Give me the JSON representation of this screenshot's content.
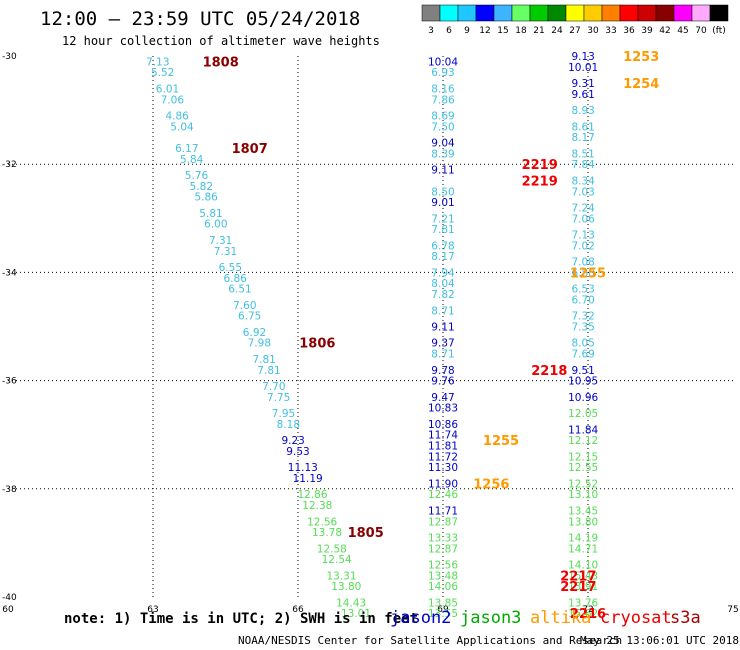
{
  "header": {
    "title": "12:00 – 23:59 UTC 05/24/2018",
    "subtitle": "12 hour collection of altimeter wave heights"
  },
  "scale": {
    "labels": [
      "3",
      "6",
      "9",
      "12",
      "15",
      "18",
      "21",
      "24",
      "27",
      "30",
      "33",
      "36",
      "39",
      "42",
      "45",
      "70",
      "(ft)"
    ],
    "colors": [
      "#808080",
      "#00ffff",
      "#1ec8ff",
      "#0000ff",
      "#3cb4ff",
      "#66ff66",
      "#00cc00",
      "#008800",
      "#ffff00",
      "#ffcc00",
      "#ff8000",
      "#ff0000",
      "#cc0000",
      "#880000",
      "#ff00ff",
      "#ffaaff",
      "#000000"
    ]
  },
  "footer": {
    "note": "note: 1) Time is in UTC; 2) SWH is in feet",
    "legend": [
      {
        "name": "jason2",
        "color": "#0000cc"
      },
      {
        "name": "jason3",
        "color": "#00aa00"
      },
      {
        "name": "altika",
        "color": "#ff9900"
      },
      {
        "name": "cryosat",
        "color": "#ee0000"
      },
      {
        "name": "s3a",
        "color": "#aa0000"
      }
    ],
    "credit": "NOAA/NESDIS Center for Satellite Applications and Research",
    "timestamp": "May 25 13:06:01 UTC 2018"
  },
  "chart_data": {
    "type": "scatter",
    "title": "12 hour collection of altimeter wave heights",
    "xlim": [
      60,
      75
    ],
    "ylim": [
      -40,
      -30
    ],
    "xticks": [
      "60",
      "63",
      "66",
      "69",
      "72",
      "75"
    ],
    "yticks": [
      "-30",
      "-32",
      "-34",
      "-36",
      "-38",
      "-40"
    ],
    "grid": true,
    "units": "ft",
    "points": [
      {
        "x": 63.1,
        "y": -30.1,
        "t": "7.13",
        "c": "#40c0e0"
      },
      {
        "x": 63.2,
        "y": -30.3,
        "t": "5.52",
        "c": "#40c0e0"
      },
      {
        "x": 63.3,
        "y": -30.6,
        "t": "6.01",
        "c": "#40c0e0"
      },
      {
        "x": 63.4,
        "y": -30.8,
        "t": "7.06",
        "c": "#40c0e0"
      },
      {
        "x": 63.5,
        "y": -31.1,
        "t": "4.86",
        "c": "#40c0e0"
      },
      {
        "x": 63.6,
        "y": -31.3,
        "t": "5.04",
        "c": "#40c0e0"
      },
      {
        "x": 63.7,
        "y": -31.7,
        "t": "6.17",
        "c": "#40c0e0"
      },
      {
        "x": 63.8,
        "y": -31.9,
        "t": "5.84",
        "c": "#40c0e0"
      },
      {
        "x": 63.9,
        "y": -32.2,
        "t": "5.76",
        "c": "#40c0e0"
      },
      {
        "x": 64.0,
        "y": -32.4,
        "t": "5.82",
        "c": "#40c0e0"
      },
      {
        "x": 64.1,
        "y": -32.6,
        "t": "5.86",
        "c": "#40c0e0"
      },
      {
        "x": 64.2,
        "y": -32.9,
        "t": "5.81",
        "c": "#40c0e0"
      },
      {
        "x": 64.3,
        "y": -33.1,
        "t": "6.00",
        "c": "#40c0e0"
      },
      {
        "x": 64.4,
        "y": -33.4,
        "t": "7.31",
        "c": "#40c0e0"
      },
      {
        "x": 64.5,
        "y": -33.6,
        "t": "7.31",
        "c": "#40c0e0"
      },
      {
        "x": 64.6,
        "y": -33.9,
        "t": "6.55",
        "c": "#40c0e0"
      },
      {
        "x": 64.7,
        "y": -34.1,
        "t": "6.86",
        "c": "#40c0e0"
      },
      {
        "x": 64.8,
        "y": -34.3,
        "t": "6.51",
        "c": "#40c0e0"
      },
      {
        "x": 64.9,
        "y": -34.6,
        "t": "7.60",
        "c": "#40c0e0"
      },
      {
        "x": 65.0,
        "y": -34.8,
        "t": "6.75",
        "c": "#40c0e0"
      },
      {
        "x": 65.1,
        "y": -35.1,
        "t": "6.92",
        "c": "#40c0e0"
      },
      {
        "x": 65.2,
        "y": -35.3,
        "t": "7.98",
        "c": "#40c0e0"
      },
      {
        "x": 65.3,
        "y": -35.6,
        "t": "7.81",
        "c": "#40c0e0"
      },
      {
        "x": 65.4,
        "y": -35.8,
        "t": "7.81",
        "c": "#40c0e0"
      },
      {
        "x": 65.5,
        "y": -36.1,
        "t": "7.70",
        "c": "#40c0e0"
      },
      {
        "x": 65.6,
        "y": -36.3,
        "t": "7.75",
        "c": "#40c0e0"
      },
      {
        "x": 65.7,
        "y": -36.6,
        "t": "7.95",
        "c": "#40c0e0"
      },
      {
        "x": 65.8,
        "y": -36.8,
        "t": "8.18",
        "c": "#40c0e0"
      },
      {
        "x": 65.9,
        "y": -37.1,
        "t": "9.23",
        "c": "#0000cc"
      },
      {
        "x": 66.0,
        "y": -37.3,
        "t": "9.53",
        "c": "#0000cc"
      },
      {
        "x": 66.1,
        "y": -37.6,
        "t": "11.13",
        "c": "#0000cc"
      },
      {
        "x": 66.2,
        "y": -37.8,
        "t": "11.19",
        "c": "#0000cc"
      },
      {
        "x": 66.3,
        "y": -38.1,
        "t": "12.86",
        "c": "#55dd55"
      },
      {
        "x": 66.4,
        "y": -38.3,
        "t": "12.38",
        "c": "#55dd55"
      },
      {
        "x": 66.5,
        "y": -38.6,
        "t": "12.56",
        "c": "#55dd55"
      },
      {
        "x": 66.6,
        "y": -38.8,
        "t": "13.78",
        "c": "#55dd55"
      },
      {
        "x": 66.7,
        "y": -39.1,
        "t": "12.58",
        "c": "#55dd55"
      },
      {
        "x": 66.8,
        "y": -39.3,
        "t": "12.54",
        "c": "#55dd55"
      },
      {
        "x": 66.9,
        "y": -39.6,
        "t": "13.31",
        "c": "#55dd55"
      },
      {
        "x": 67.0,
        "y": -39.8,
        "t": "13.80",
        "c": "#55dd55"
      },
      {
        "x": 67.1,
        "y": -40.1,
        "t": "14.43",
        "c": "#55dd55"
      },
      {
        "x": 67.2,
        "y": -40.3,
        "t": "13.01",
        "c": "#55dd55"
      },
      {
        "x": 69.0,
        "y": -30.1,
        "t": "10.04",
        "c": "#0000cc"
      },
      {
        "x": 69.0,
        "y": -30.3,
        "t": "6.93",
        "c": "#40c0e0"
      },
      {
        "x": 69.0,
        "y": -30.6,
        "t": "8.16",
        "c": "#40c0e0"
      },
      {
        "x": 69.0,
        "y": -30.8,
        "t": "7.86",
        "c": "#40c0e0"
      },
      {
        "x": 69.0,
        "y": -31.1,
        "t": "8.69",
        "c": "#40c0e0"
      },
      {
        "x": 69.0,
        "y": -31.3,
        "t": "7.50",
        "c": "#40c0e0"
      },
      {
        "x": 69.0,
        "y": -31.6,
        "t": "9.04",
        "c": "#0000cc"
      },
      {
        "x": 69.0,
        "y": -31.8,
        "t": "8.39",
        "c": "#40c0e0"
      },
      {
        "x": 69.0,
        "y": -32.1,
        "t": "9.11",
        "c": "#0000cc"
      },
      {
        "x": 69.0,
        "y": -32.5,
        "t": "8.50",
        "c": "#40c0e0"
      },
      {
        "x": 69.0,
        "y": -32.7,
        "t": "9.01",
        "c": "#0000cc"
      },
      {
        "x": 69.0,
        "y": -33.0,
        "t": "7.21",
        "c": "#40c0e0"
      },
      {
        "x": 69.0,
        "y": -33.2,
        "t": "7.81",
        "c": "#40c0e0"
      },
      {
        "x": 69.0,
        "y": -33.5,
        "t": "6.78",
        "c": "#40c0e0"
      },
      {
        "x": 69.0,
        "y": -33.7,
        "t": "8.17",
        "c": "#40c0e0"
      },
      {
        "x": 69.0,
        "y": -34.0,
        "t": "7.94",
        "c": "#40c0e0"
      },
      {
        "x": 69.0,
        "y": -34.2,
        "t": "8.04",
        "c": "#40c0e0"
      },
      {
        "x": 69.0,
        "y": -34.4,
        "t": "7.82",
        "c": "#40c0e0"
      },
      {
        "x": 69.0,
        "y": -34.7,
        "t": "8.71",
        "c": "#40c0e0"
      },
      {
        "x": 69.0,
        "y": -35.0,
        "t": "9.11",
        "c": "#0000cc"
      },
      {
        "x": 69.0,
        "y": -35.3,
        "t": "9.37",
        "c": "#0000cc"
      },
      {
        "x": 69.0,
        "y": -35.5,
        "t": "8.71",
        "c": "#40c0e0"
      },
      {
        "x": 69.0,
        "y": -35.8,
        "t": "9.78",
        "c": "#0000cc"
      },
      {
        "x": 69.0,
        "y": -36.0,
        "t": "9.76",
        "c": "#0000cc"
      },
      {
        "x": 69.0,
        "y": -36.3,
        "t": "9.47",
        "c": "#0000cc"
      },
      {
        "x": 69.0,
        "y": -36.5,
        "t": "10.83",
        "c": "#0000cc"
      },
      {
        "x": 69.0,
        "y": -36.8,
        "t": "10.86",
        "c": "#0000cc"
      },
      {
        "x": 69.0,
        "y": -37.0,
        "t": "11.74",
        "c": "#0000cc"
      },
      {
        "x": 69.0,
        "y": -37.2,
        "t": "11.81",
        "c": "#0000cc"
      },
      {
        "x": 69.0,
        "y": -37.4,
        "t": "11.72",
        "c": "#0000cc"
      },
      {
        "x": 69.0,
        "y": -37.6,
        "t": "11.30",
        "c": "#0000cc"
      },
      {
        "x": 69.0,
        "y": -37.9,
        "t": "11.90",
        "c": "#0000cc"
      },
      {
        "x": 69.0,
        "y": -38.1,
        "t": "12.46",
        "c": "#55dd55"
      },
      {
        "x": 69.0,
        "y": -38.4,
        "t": "11.71",
        "c": "#0000cc"
      },
      {
        "x": 69.0,
        "y": -38.6,
        "t": "12.87",
        "c": "#55dd55"
      },
      {
        "x": 69.0,
        "y": -38.9,
        "t": "13.33",
        "c": "#55dd55"
      },
      {
        "x": 69.0,
        "y": -39.1,
        "t": "12.87",
        "c": "#55dd55"
      },
      {
        "x": 69.0,
        "y": -39.4,
        "t": "12.56",
        "c": "#55dd55"
      },
      {
        "x": 69.0,
        "y": -39.6,
        "t": "13.48",
        "c": "#55dd55"
      },
      {
        "x": 69.0,
        "y": -39.8,
        "t": "14.06",
        "c": "#55dd55"
      },
      {
        "x": 69.0,
        "y": -40.1,
        "t": "13.85",
        "c": "#55dd55"
      },
      {
        "x": 69.0,
        "y": -40.3,
        "t": "13.55",
        "c": "#55dd55"
      },
      {
        "x": 71.9,
        "y": -30.0,
        "t": "9.13",
        "c": "#0000cc"
      },
      {
        "x": 71.9,
        "y": -30.2,
        "t": "10.01",
        "c": "#0000cc"
      },
      {
        "x": 71.9,
        "y": -30.5,
        "t": "9.31",
        "c": "#0000cc"
      },
      {
        "x": 71.9,
        "y": -30.7,
        "t": "9.61",
        "c": "#0000cc"
      },
      {
        "x": 71.9,
        "y": -31.0,
        "t": "8.93",
        "c": "#40c0e0"
      },
      {
        "x": 71.9,
        "y": -31.3,
        "t": "8.61",
        "c": "#40c0e0"
      },
      {
        "x": 71.9,
        "y": -31.5,
        "t": "8.17",
        "c": "#40c0e0"
      },
      {
        "x": 71.9,
        "y": -31.8,
        "t": "8.51",
        "c": "#40c0e0"
      },
      {
        "x": 71.9,
        "y": -32.0,
        "t": "7.84",
        "c": "#40c0e0"
      },
      {
        "x": 71.9,
        "y": -32.3,
        "t": "8.34",
        "c": "#40c0e0"
      },
      {
        "x": 71.9,
        "y": -32.5,
        "t": "7.03",
        "c": "#40c0e0"
      },
      {
        "x": 71.9,
        "y": -32.8,
        "t": "7.24",
        "c": "#40c0e0"
      },
      {
        "x": 71.9,
        "y": -33.0,
        "t": "7.06",
        "c": "#40c0e0"
      },
      {
        "x": 71.9,
        "y": -33.3,
        "t": "7.13",
        "c": "#40c0e0"
      },
      {
        "x": 71.9,
        "y": -33.5,
        "t": "7.02",
        "c": "#40c0e0"
      },
      {
        "x": 71.9,
        "y": -33.8,
        "t": "7.08",
        "c": "#40c0e0"
      },
      {
        "x": 71.9,
        "y": -34.0,
        "t": "6.88",
        "c": "#40c0e0"
      },
      {
        "x": 71.9,
        "y": -34.3,
        "t": "6.53",
        "c": "#40c0e0"
      },
      {
        "x": 71.9,
        "y": -34.5,
        "t": "6.70",
        "c": "#40c0e0"
      },
      {
        "x": 71.9,
        "y": -34.8,
        "t": "7.32",
        "c": "#40c0e0"
      },
      {
        "x": 71.9,
        "y": -35.0,
        "t": "7.35",
        "c": "#40c0e0"
      },
      {
        "x": 71.9,
        "y": -35.3,
        "t": "8.05",
        "c": "#40c0e0"
      },
      {
        "x": 71.9,
        "y": -35.5,
        "t": "7.69",
        "c": "#40c0e0"
      },
      {
        "x": 71.9,
        "y": -35.8,
        "t": "9.51",
        "c": "#0000cc"
      },
      {
        "x": 71.9,
        "y": -36.0,
        "t": "10.95",
        "c": "#0000cc"
      },
      {
        "x": 71.9,
        "y": -36.3,
        "t": "10.96",
        "c": "#0000cc"
      },
      {
        "x": 71.9,
        "y": -36.6,
        "t": "12.05",
        "c": "#55dd55"
      },
      {
        "x": 71.9,
        "y": -36.9,
        "t": "11.84",
        "c": "#0000cc"
      },
      {
        "x": 71.9,
        "y": -37.1,
        "t": "12.12",
        "c": "#55dd55"
      },
      {
        "x": 71.9,
        "y": -37.4,
        "t": "12.15",
        "c": "#55dd55"
      },
      {
        "x": 71.9,
        "y": -37.6,
        "t": "12.55",
        "c": "#55dd55"
      },
      {
        "x": 71.9,
        "y": -37.9,
        "t": "12.52",
        "c": "#55dd55"
      },
      {
        "x": 71.9,
        "y": -38.1,
        "t": "13.10",
        "c": "#55dd55"
      },
      {
        "x": 71.9,
        "y": -38.4,
        "t": "13.45",
        "c": "#55dd55"
      },
      {
        "x": 71.9,
        "y": -38.6,
        "t": "13.80",
        "c": "#55dd55"
      },
      {
        "x": 71.9,
        "y": -38.9,
        "t": "14.19",
        "c": "#55dd55"
      },
      {
        "x": 71.9,
        "y": -39.1,
        "t": "14.71",
        "c": "#55dd55"
      },
      {
        "x": 71.9,
        "y": -39.4,
        "t": "14.10",
        "c": "#55dd55"
      },
      {
        "x": 71.9,
        "y": -39.6,
        "t": "15.43",
        "c": "#55dd55"
      },
      {
        "x": 71.9,
        "y": -39.8,
        "t": "13.91",
        "c": "#55dd55"
      },
      {
        "x": 71.9,
        "y": -40.1,
        "t": "13.76",
        "c": "#55dd55"
      },
      {
        "x": 71.9,
        "y": -40.3,
        "t": "15.62",
        "c": "#55dd55"
      }
    ],
    "pass_labels": [
      {
        "x": 64.4,
        "y": -30.1,
        "t": "1808",
        "c": "#880000"
      },
      {
        "x": 65.0,
        "y": -31.7,
        "t": "1807",
        "c": "#880000"
      },
      {
        "x": 66.4,
        "y": -35.3,
        "t": "1806",
        "c": "#880000"
      },
      {
        "x": 67.4,
        "y": -38.8,
        "t": "1805",
        "c": "#880000"
      },
      {
        "x": 73.1,
        "y": -30.0,
        "t": "1253",
        "c": "#ff9900"
      },
      {
        "x": 73.1,
        "y": -30.5,
        "t": "1254",
        "c": "#ff9900"
      },
      {
        "x": 71.0,
        "y": -32.0,
        "t": "2219",
        "c": "#ee0000"
      },
      {
        "x": 71.0,
        "y": -32.3,
        "t": "2219",
        "c": "#ee0000"
      },
      {
        "x": 72.0,
        "y": -34.0,
        "t": "1255",
        "c": "#ff9900"
      },
      {
        "x": 71.2,
        "y": -35.8,
        "t": "2218",
        "c": "#ee0000"
      },
      {
        "x": 70.2,
        "y": -37.1,
        "t": "1255",
        "c": "#ff9900"
      },
      {
        "x": 70.0,
        "y": -37.9,
        "t": "1256",
        "c": "#ff9900"
      },
      {
        "x": 71.8,
        "y": -39.6,
        "t": "2217",
        "c": "#ee0000"
      },
      {
        "x": 71.8,
        "y": -39.8,
        "t": "2217",
        "c": "#ee0000"
      },
      {
        "x": 72.0,
        "y": -40.3,
        "t": "2216",
        "c": "#ee0000"
      }
    ]
  }
}
